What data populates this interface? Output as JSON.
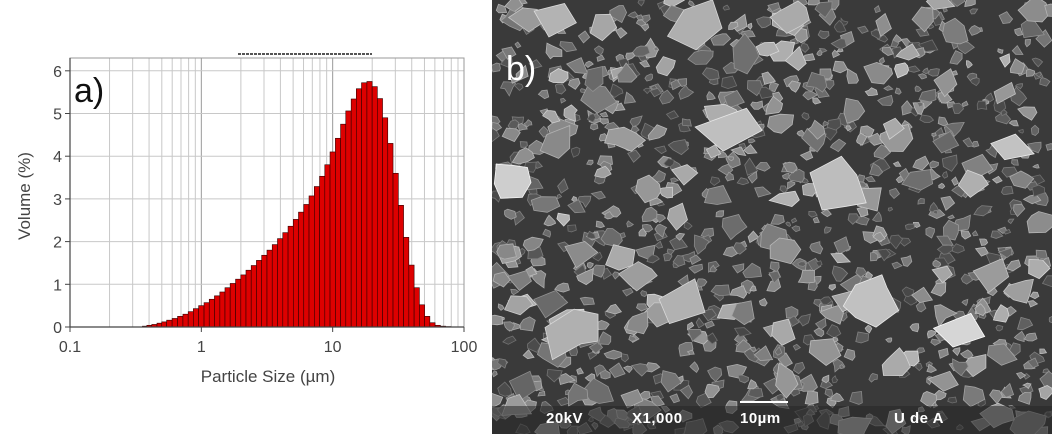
{
  "panel_a_label": "a)",
  "panel_b_label": "b)",
  "chart_data": {
    "type": "bar",
    "xlabel": "Particle Size (µm)",
    "ylabel": "Volume (%)",
    "x_scale": "log",
    "xlim": [
      0.1,
      100
    ],
    "ylim": [
      0,
      6.3
    ],
    "x_ticks": [
      "0.1",
      "1",
      "10",
      "100"
    ],
    "y_ticks": [
      "0",
      "1",
      "2",
      "3",
      "4",
      "5",
      "6"
    ],
    "grid": true,
    "bar_color": "#dd0000",
    "bar_edge_color": "#330000",
    "x": [
      0.37,
      0.4,
      0.44,
      0.48,
      0.52,
      0.57,
      0.63,
      0.69,
      0.76,
      0.83,
      0.91,
      1.0,
      1.1,
      1.2,
      1.32,
      1.45,
      1.58,
      1.74,
      1.91,
      2.09,
      2.29,
      2.51,
      2.75,
      3.02,
      3.31,
      3.63,
      3.98,
      4.37,
      4.79,
      5.25,
      5.75,
      6.31,
      6.92,
      7.59,
      8.32,
      9.12,
      10.0,
      11.0,
      12.0,
      13.2,
      14.5,
      15.8,
      17.4,
      19.1,
      20.9,
      22.9,
      25.1,
      27.5,
      30.2,
      33.1,
      36.3,
      39.8,
      43.7,
      47.9,
      52.5,
      57.5,
      63.1,
      69.2,
      75.9
    ],
    "values": [
      0.02,
      0.04,
      0.06,
      0.09,
      0.12,
      0.16,
      0.2,
      0.25,
      0.3,
      0.36,
      0.43,
      0.5,
      0.57,
      0.65,
      0.73,
      0.82,
      0.92,
      1.02,
      1.12,
      1.22,
      1.33,
      1.44,
      1.56,
      1.68,
      1.8,
      1.93,
      2.07,
      2.21,
      2.36,
      2.52,
      2.69,
      2.87,
      3.07,
      3.29,
      3.53,
      3.8,
      4.1,
      4.42,
      4.75,
      5.06,
      5.34,
      5.58,
      5.72,
      5.75,
      5.63,
      5.35,
      4.9,
      4.3,
      3.6,
      2.85,
      2.1,
      1.45,
      0.92,
      0.52,
      0.25,
      0.1,
      0.04,
      0.02,
      0.01
    ]
  },
  "sem": {
    "voltage": "20kV",
    "magnification": "X1,000",
    "scale": "10µm",
    "institution": "U de A"
  }
}
